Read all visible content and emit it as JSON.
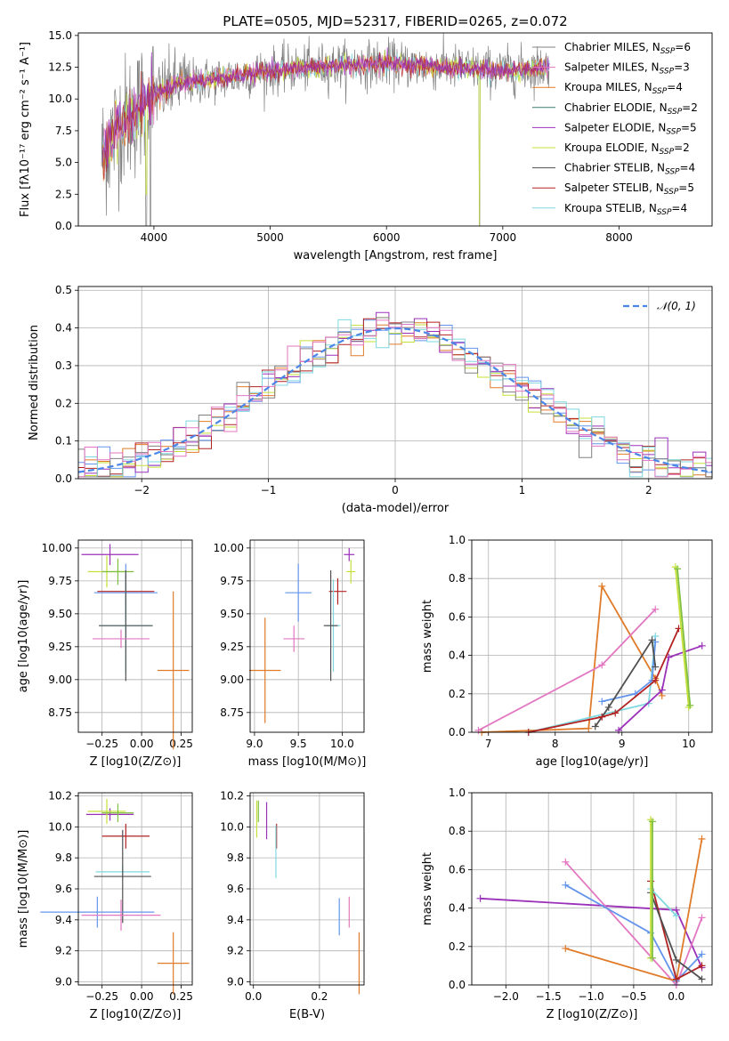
{
  "figure_title": "PLATE=0505, MJD=52317, FIBERID=0265, z=0.072",
  "colors": {
    "gray": "#808080",
    "orange": "#e07b2a",
    "blue": "#6495ed",
    "purple": "#9b30b9",
    "pink": "#e377c2",
    "yellow_green": "#c6e03a",
    "cyan": "#7fd8e0",
    "red": "#b22222",
    "dark": "#505050",
    "green": "#7fbf3f",
    "normal_curve": "#4a86e8"
  },
  "chart_data": [
    {
      "id": "spectrum",
      "type": "line",
      "title": "PLATE=0505, MJD=52317, FIBERID=0265, z=0.072",
      "xlabel": "wavelength [Angstrom, rest frame]",
      "ylabel": "Flux [fλ10⁻¹⁷ erg cm⁻² s⁻¹ A⁻¹]",
      "xlim": [
        3350,
        8800
      ],
      "ylim": [
        0,
        15.2
      ],
      "xticks": [
        4000,
        5000,
        6000,
        7000,
        8000
      ],
      "yticks": [
        0.0,
        2.5,
        5.0,
        7.5,
        10.0,
        12.5,
        15.0
      ],
      "grid": false,
      "legend_position": "right",
      "legend": [
        {
          "label": "Chabrier MILES, N_SSP=6",
          "base": "Chabrier MILES, N",
          "sub": "SSP",
          "tail": "=6",
          "color": "#808080"
        },
        {
          "label": "Salpeter MILES, N_SSP=3",
          "base": "Salpeter MILES, N",
          "sub": "SSP",
          "tail": "=3",
          "color": "#e377c2"
        },
        {
          "label": "Kroupa MILES, N_SSP=4",
          "base": "Kroupa MILES, N",
          "sub": "SSP",
          "tail": "=4",
          "color": "#e07b2a"
        },
        {
          "label": "Chabrier ELODIE, N_SSP=2",
          "base": "Chabrier ELODIE, N",
          "sub": "SSP",
          "tail": "=2",
          "color": "#3a7a6a"
        },
        {
          "label": "Salpeter ELODIE, N_SSP=5",
          "base": "Salpeter ELODIE, N",
          "sub": "SSP",
          "tail": "=5",
          "color": "#9b30b9"
        },
        {
          "label": "Kroupa ELODIE, N_SSP=2",
          "base": "Kroupa ELODIE, N",
          "sub": "SSP",
          "tail": "=2",
          "color": "#c6e03a"
        },
        {
          "label": "Chabrier STELIB, N_SSP=4",
          "base": "Chabrier STELIB, N",
          "sub": "SSP",
          "tail": "=4",
          "color": "#505050"
        },
        {
          "label": "Salpeter STELIB, N_SSP=5",
          "base": "Salpeter STELIB, N",
          "sub": "SSP",
          "tail": "=5",
          "color": "#b22222"
        },
        {
          "label": "Kroupa STELIB, N_SSP=4",
          "base": "Kroupa STELIB, N",
          "sub": "SSP",
          "tail": "=4",
          "color": "#7fd8e0"
        }
      ],
      "data_trend": {
        "x": [
          3550,
          3700,
          3850,
          4000,
          4200,
          4500,
          5000,
          5500,
          6000,
          6500,
          7000,
          7400
        ],
        "y": [
          5.5,
          8.0,
          9.0,
          10.3,
          11.2,
          11.5,
          12.2,
          12.6,
          12.8,
          12.5,
          12.2,
          12.5
        ]
      }
    },
    {
      "id": "residuals",
      "type": "line",
      "xlabel": "(data-model)/error",
      "ylabel": "Normed distribution",
      "xlim": [
        -2.5,
        2.5
      ],
      "ylim": [
        0,
        0.51
      ],
      "xticks": [
        -2,
        -1,
        0,
        1,
        2
      ],
      "yticks": [
        0.0,
        0.1,
        0.2,
        0.3,
        0.4,
        0.5
      ],
      "grid": true,
      "legend_position": "top-right",
      "legend": [
        {
          "label": "𝒩(0, 1)",
          "color": "#4a86e8",
          "style": "dashed"
        }
      ],
      "bin_width": 0.1,
      "series_colors": [
        "#e07b2a",
        "#6495ed",
        "#9b30b9",
        "#c6e03a",
        "#b22222",
        "#7fd8e0",
        "#808080",
        "#e377c2"
      ]
    },
    {
      "id": "age_vs_Z",
      "type": "scatter",
      "xlabel": "Z [log10(Z/Z⊙)]",
      "ylabel": "age [log10(age/yr)]",
      "xlim": [
        -0.4,
        0.32
      ],
      "ylim": [
        8.6,
        10.06
      ],
      "xticks": [
        -0.25,
        0.0,
        0.25
      ],
      "xtick_labels": [
        "−0.25",
        "0.00",
        "0.25"
      ],
      "yticks": [
        8.75,
        9.0,
        9.25,
        9.5,
        9.75,
        10.0
      ],
      "ytick_labels": [
        "8.75",
        "9.00",
        "9.25",
        "9.50",
        "9.75",
        "10.00"
      ],
      "grid": true,
      "points": [
        {
          "x": -0.2,
          "y": 9.95,
          "xerr": 0.18,
          "yerr": 0.08,
          "color": "#9b30b9"
        },
        {
          "x": -0.22,
          "y": 9.82,
          "xerr": 0.12,
          "yerr": 0.12,
          "color": "#c6e03a"
        },
        {
          "x": -0.15,
          "y": 9.82,
          "xerr": 0.1,
          "yerr": 0.1,
          "color": "#7fbf3f"
        },
        {
          "x": -0.1,
          "y": 9.67,
          "xerr": 0.18,
          "yerr": 0.12,
          "color": "#b22222"
        },
        {
          "x": -0.1,
          "y": 9.66,
          "xerr": 0.2,
          "yerr": 0.22,
          "color": "#6495ed"
        },
        {
          "x": -0.1,
          "y": 9.41,
          "xerr": 0.17,
          "yerr": 0.36,
          "color": "#7fd8e0"
        },
        {
          "x": -0.1,
          "y": 9.41,
          "xerr": 0.17,
          "yerr": 0.42,
          "color": "#505050"
        },
        {
          "x": -0.13,
          "y": 9.31,
          "xerr": 0.18,
          "yerr": 0.07,
          "color": "#e377c2"
        },
        {
          "x": 0.2,
          "y": 9.07,
          "xerr": 0.1,
          "yerr": 0.6,
          "color": "#e07b2a"
        }
      ]
    },
    {
      "id": "age_vs_mass",
      "type": "scatter",
      "xlabel": "mass [log10(M/M⊙)]",
      "ylabel": "",
      "xlim": [
        8.95,
        10.25
      ],
      "ylim": [
        8.6,
        10.06
      ],
      "xticks": [
        9.0,
        9.5,
        10.0
      ],
      "xtick_labels": [
        "9.0",
        "9.5",
        "10.0"
      ],
      "yticks": [
        8.75,
        9.0,
        9.25,
        9.5,
        9.75,
        10.0
      ],
      "ytick_labels": [
        "8.75",
        "9.00",
        "9.25",
        "9.50",
        "9.75",
        "10.00"
      ],
      "grid": true,
      "points": [
        {
          "x": 10.08,
          "y": 9.95,
          "xerr": 0.06,
          "yerr": 0.05,
          "color": "#9b30b9"
        },
        {
          "x": 10.1,
          "y": 9.82,
          "xerr": 0.05,
          "yerr": 0.09,
          "color": "#c6e03a"
        },
        {
          "x": 9.95,
          "y": 9.67,
          "xerr": 0.1,
          "yerr": 0.1,
          "color": "#b22222"
        },
        {
          "x": 9.5,
          "y": 9.66,
          "xerr": 0.15,
          "yerr": 0.22,
          "color": "#6495ed"
        },
        {
          "x": 9.9,
          "y": 9.41,
          "xerr": 0.08,
          "yerr": 0.35,
          "color": "#7fd8e0"
        },
        {
          "x": 9.87,
          "y": 9.41,
          "xerr": 0.08,
          "yerr": 0.42,
          "color": "#505050"
        },
        {
          "x": 9.45,
          "y": 9.31,
          "xerr": 0.12,
          "yerr": 0.1,
          "color": "#e377c2"
        },
        {
          "x": 9.12,
          "y": 9.07,
          "xerr": 0.18,
          "yerr": 0.4,
          "color": "#e07b2a"
        }
      ]
    },
    {
      "id": "massweight_vs_age",
      "type": "line",
      "xlabel": "age [log10(age/yr)]",
      "ylabel": "mass weight",
      "xlim": [
        6.75,
        10.35
      ],
      "ylim": [
        0,
        1.0
      ],
      "xticks": [
        7,
        8,
        9,
        10
      ],
      "xtick_labels": [
        "7",
        "8",
        "9",
        "10"
      ],
      "yticks": [
        0.0,
        0.2,
        0.4,
        0.6,
        0.8,
        1.0
      ],
      "ytick_labels": [
        "0.0",
        "0.2",
        "0.4",
        "0.6",
        "0.8",
        "1.0"
      ],
      "grid": true,
      "series": [
        {
          "color": "#e07b2a",
          "x": [
            6.9,
            8.5,
            8.7,
            9.5,
            9.6
          ],
          "y": [
            0.0,
            0.02,
            0.76,
            0.28,
            0.19
          ]
        },
        {
          "color": "#e377c2",
          "x": [
            6.85,
            8.7,
            9.5
          ],
          "y": [
            0.01,
            0.35,
            0.64
          ]
        },
        {
          "color": "#7fd8e0",
          "x": [
            7.6,
            9.4,
            9.5
          ],
          "y": [
            0.0,
            0.15,
            0.5
          ]
        },
        {
          "color": "#6495ed",
          "x": [
            8.7,
            9.2,
            9.45,
            9.5
          ],
          "y": [
            0.16,
            0.2,
            0.27,
            0.47
          ]
        },
        {
          "color": "#505050",
          "x": [
            8.6,
            8.8,
            9.45,
            9.5
          ],
          "y": [
            0.03,
            0.13,
            0.48,
            0.34
          ]
        },
        {
          "color": "#9b30b9",
          "x": [
            8.95,
            9.6,
            9.7,
            10.2
          ],
          "y": [
            0.01,
            0.22,
            0.39,
            0.45
          ]
        },
        {
          "color": "#b22222",
          "x": [
            7.6,
            8.7,
            8.9,
            9.5,
            9.85
          ],
          "y": [
            0.0,
            0.08,
            0.1,
            0.27,
            0.54
          ]
        },
        {
          "color": "#c6e03a",
          "x": [
            9.8,
            10.0
          ],
          "y": [
            0.86,
            0.13
          ]
        },
        {
          "color": "#7fbf3f",
          "x": [
            9.83,
            10.02
          ],
          "y": [
            0.85,
            0.14
          ]
        }
      ]
    },
    {
      "id": "mass_vs_Z",
      "type": "scatter",
      "xlabel": "Z [log10(Z/Z⊙)]",
      "ylabel": "mass [log10(M/M⊙)]",
      "xlim": [
        -0.4,
        0.32
      ],
      "ylim": [
        8.98,
        10.22
      ],
      "xticks": [
        -0.25,
        0.0,
        0.25
      ],
      "xtick_labels": [
        "−0.25",
        "0.00",
        "0.25"
      ],
      "yticks": [
        9.0,
        9.2,
        9.4,
        9.6,
        9.8,
        10.0,
        10.2
      ],
      "ytick_labels": [
        "9.0",
        "9.2",
        "9.4",
        "9.6",
        "9.8",
        "10.0",
        "10.2"
      ],
      "grid": true,
      "points": [
        {
          "x": -0.2,
          "y": 10.08,
          "xerr": 0.15,
          "yerr": 0.04,
          "color": "#9b30b9"
        },
        {
          "x": -0.22,
          "y": 10.1,
          "xerr": 0.12,
          "yerr": 0.08,
          "color": "#c6e03a"
        },
        {
          "x": -0.15,
          "y": 10.09,
          "xerr": 0.1,
          "yerr": 0.06,
          "color": "#7fbf3f"
        },
        {
          "x": -0.1,
          "y": 9.94,
          "xerr": 0.15,
          "yerr": 0.08,
          "color": "#b22222"
        },
        {
          "x": -0.12,
          "y": 9.71,
          "xerr": 0.17,
          "yerr": 0.04,
          "color": "#7fd8e0"
        },
        {
          "x": -0.12,
          "y": 9.68,
          "xerr": 0.18,
          "yerr": 0.3,
          "color": "#505050"
        },
        {
          "x": -0.28,
          "y": 9.45,
          "xerr": 0.36,
          "yerr": 0.1,
          "color": "#6495ed"
        },
        {
          "x": -0.13,
          "y": 9.43,
          "xerr": 0.25,
          "yerr": 0.1,
          "color": "#e377c2"
        },
        {
          "x": 0.2,
          "y": 9.12,
          "xerr": 0.1,
          "yerr": 0.2,
          "color": "#e07b2a"
        }
      ]
    },
    {
      "id": "mass_vs_ebv",
      "type": "scatter",
      "xlabel": "E(B-V)",
      "ylabel": "",
      "xlim": [
        -0.01,
        0.335
      ],
      "ylim": [
        8.98,
        10.22
      ],
      "xticks": [
        0.0,
        0.2
      ],
      "xtick_labels": [
        "0.0",
        "0.2"
      ],
      "yticks": [
        9.0,
        9.2,
        9.4,
        9.6,
        9.8,
        10.0,
        10.2
      ],
      "ytick_labels": [
        "9.0",
        "9.2",
        "9.4",
        "9.6",
        "9.8",
        "10.0",
        "10.2"
      ],
      "grid": true,
      "points": [
        {
          "x": 0.01,
          "y": 10.05,
          "xerr": 0,
          "yerr": 0.12,
          "color": "#c6e03a"
        },
        {
          "x": 0.015,
          "y": 10.1,
          "xerr": 0,
          "yerr": 0.07,
          "color": "#7fbf3f"
        },
        {
          "x": 0.04,
          "y": 10.04,
          "xerr": 0,
          "yerr": 0.12,
          "color": "#9b30b9"
        },
        {
          "x": 0.07,
          "y": 9.94,
          "xerr": 0,
          "yerr": 0.08,
          "color": "#b22222"
        },
        {
          "x": 0.068,
          "y": 9.84,
          "xerr": 0,
          "yerr": 0.17,
          "color": "#7fd8e0"
        },
        {
          "x": 0.26,
          "y": 9.42,
          "xerr": 0,
          "yerr": 0.12,
          "color": "#6495ed"
        },
        {
          "x": 0.29,
          "y": 9.45,
          "xerr": 0,
          "yerr": 0.1,
          "color": "#e377c2"
        },
        {
          "x": 0.32,
          "y": 9.12,
          "xerr": 0,
          "yerr": 0.2,
          "color": "#e07b2a"
        }
      ]
    },
    {
      "id": "massweight_vs_Z",
      "type": "line",
      "xlabel": "Z [log10(Z/Z⊙)]",
      "ylabel": "mass weight",
      "xlim": [
        -2.4,
        0.42
      ],
      "ylim": [
        0,
        1.0
      ],
      "xticks": [
        -2.0,
        -1.5,
        -1.0,
        -0.5,
        0.0
      ],
      "xtick_labels": [
        "−2.0",
        "−1.5",
        "−1.0",
        "−0.5",
        "0.0"
      ],
      "yticks": [
        0.0,
        0.2,
        0.4,
        0.6,
        0.8,
        1.0
      ],
      "ytick_labels": [
        "0.0",
        "0.2",
        "0.4",
        "0.6",
        "0.8",
        "1.0"
      ],
      "grid": true,
      "series": [
        {
          "color": "#9b30b9",
          "x": [
            -2.3,
            0.0,
            0.3
          ],
          "y": [
            0.45,
            0.39,
            0.09
          ]
        },
        {
          "color": "#e377c2",
          "x": [
            -1.3,
            0.0,
            0.3
          ],
          "y": [
            0.64,
            0.0,
            0.35
          ]
        },
        {
          "color": "#e07b2a",
          "x": [
            -1.3,
            0.0,
            0.3
          ],
          "y": [
            0.19,
            0.02,
            0.76
          ]
        },
        {
          "color": "#6495ed",
          "x": [
            -1.3,
            -0.3,
            0.0,
            0.3
          ],
          "y": [
            0.52,
            0.27,
            0.02,
            0.16
          ]
        },
        {
          "color": "#b22222",
          "x": [
            -0.3,
            0.0,
            0.3
          ],
          "y": [
            0.54,
            0.03,
            0.1
          ]
        },
        {
          "color": "#505050",
          "x": [
            -0.3,
            0.0,
            0.3
          ],
          "y": [
            0.48,
            0.13,
            0.03
          ]
        },
        {
          "color": "#7fd8e0",
          "x": [
            -0.3,
            0.0
          ],
          "y": [
            0.5,
            0.36
          ]
        },
        {
          "color": "#c6e03a",
          "x": [
            -0.3,
            -0.3
          ],
          "y": [
            0.86,
            0.14
          ]
        },
        {
          "color": "#7fbf3f",
          "x": [
            -0.28,
            -0.28
          ],
          "y": [
            0.85,
            0.14
          ]
        }
      ]
    }
  ]
}
